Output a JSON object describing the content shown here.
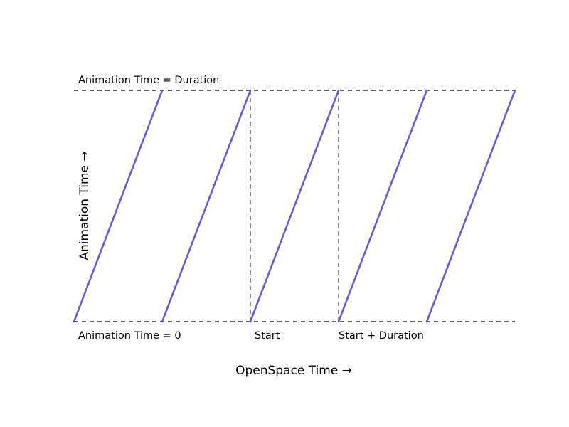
{
  "diagram": {
    "top_line_label": "Animation Time = Duration",
    "bottom_line_label": "Animation Time = 0",
    "start_label": "Start",
    "end_label": "Start + Duration",
    "xlabel": "OpenSpace Time →",
    "ylabel": "Animation Time →",
    "cycles": 5,
    "colors": {
      "sawtooth": "#6a5ad6",
      "dashed": "#000000",
      "marker": "#555555"
    }
  }
}
